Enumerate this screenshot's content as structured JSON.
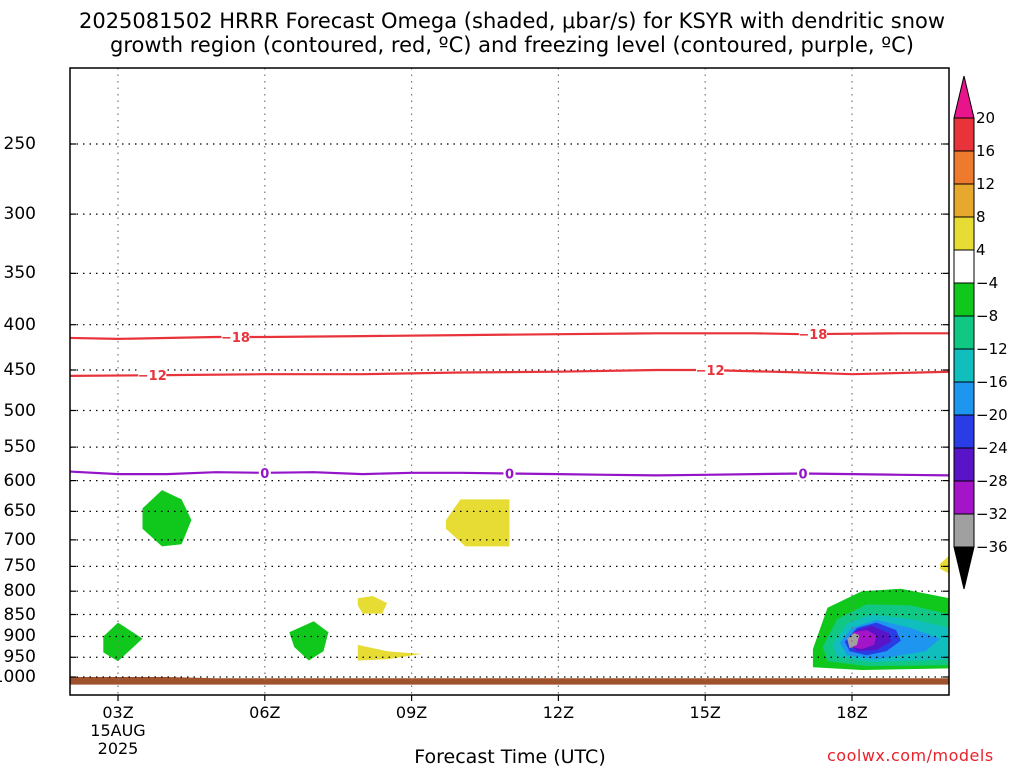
{
  "header": {
    "title_line1": "2025081502 HRRR Forecast Omega (shaded, μbar/s) for KSYR with dendritic snow",
    "title_line2": "growth region (contoured, red, ºC) and freezing level (contoured, purple, ºC)"
  },
  "footer": {
    "xlabel": "Forecast Time (UTC)",
    "credit": "coolwx.com/models"
  },
  "chart_data": {
    "type": "heatmap",
    "x_axis": {
      "label": "Forecast Time (UTC)",
      "ticks": [
        "03Z",
        "06Z",
        "09Z",
        "12Z",
        "15Z",
        "18Z"
      ],
      "tick_hours": [
        3,
        6,
        9,
        12,
        15,
        18
      ],
      "range_hours": [
        2,
        20
      ],
      "date_line1": "15AUG",
      "date_line2": "2025",
      "grid": true
    },
    "y_axis": {
      "label": "",
      "unit": "hPa",
      "ticks": [
        250,
        300,
        350,
        400,
        450,
        500,
        550,
        600,
        650,
        700,
        750,
        800,
        850,
        900,
        950,
        1000
      ],
      "range": [
        200,
        1020
      ],
      "inverted": true,
      "grid": true
    },
    "colorbar": {
      "labels": [
        "20",
        "16",
        "12",
        "8",
        "4",
        "−4",
        "−8",
        "−12",
        "−16",
        "−20",
        "−24",
        "−28",
        "−32",
        "−36"
      ],
      "levels": [
        20,
        16,
        12,
        8,
        4,
        -4,
        -8,
        -12,
        -16,
        -20,
        -24,
        -28,
        -32,
        -36
      ],
      "bins": [
        {
          "range": [
            16,
            20
          ],
          "color": "#e8333a"
        },
        {
          "range": [
            12,
            16
          ],
          "color": "#ed7a2d"
        },
        {
          "range": [
            8,
            12
          ],
          "color": "#e6a92e"
        },
        {
          "range": [
            4,
            8
          ],
          "color": "#e6dc33"
        },
        {
          "range": [
            -4,
            4
          ],
          "color": "#ffffff"
        },
        {
          "range": [
            -8,
            -4
          ],
          "color": "#10c81c"
        },
        {
          "range": [
            -12,
            -8
          ],
          "color": "#10c884"
        },
        {
          "range": [
            -16,
            -12
          ],
          "color": "#10bebe"
        },
        {
          "range": [
            -20,
            -16
          ],
          "color": "#1e96f0"
        },
        {
          "range": [
            -24,
            -20
          ],
          "color": "#2a3ce6"
        },
        {
          "range": [
            -28,
            -24
          ],
          "color": "#5a14c8"
        },
        {
          "range": [
            -32,
            -28
          ],
          "color": "#a414c8"
        },
        {
          "range": [
            -36,
            -32
          ],
          "color": "#a0a0a0"
        }
      ],
      "top_triangle_color": "#e8148c",
      "bottom_triangle_color": "#000000"
    },
    "contours": [
      {
        "name": "dgz-18",
        "label": "−18",
        "color": "#e8333a",
        "points": [
          [
            2,
            414
          ],
          [
            3,
            415
          ],
          [
            5,
            413
          ],
          [
            6,
            413
          ],
          [
            8,
            412
          ],
          [
            10,
            411
          ],
          [
            12,
            410
          ],
          [
            14,
            409
          ],
          [
            16,
            409
          ],
          [
            17,
            410
          ],
          [
            19,
            409
          ],
          [
            20,
            409
          ]
        ],
        "label_hours": [
          5.4,
          17.2
        ]
      },
      {
        "name": "dgz-12",
        "label": "−12",
        "color": "#e8333a",
        "points": [
          [
            2,
            457
          ],
          [
            4,
            456
          ],
          [
            6,
            455
          ],
          [
            8,
            455
          ],
          [
            10,
            453
          ],
          [
            12,
            452
          ],
          [
            14,
            450
          ],
          [
            15,
            450
          ],
          [
            17,
            453
          ],
          [
            18,
            455
          ],
          [
            20,
            452
          ]
        ],
        "label_hours": [
          3.7,
          15.1
        ]
      },
      {
        "name": "freezing-level",
        "label": "0",
        "color": "#9414c8",
        "points": [
          [
            2,
            586
          ],
          [
            3,
            590
          ],
          [
            4,
            590
          ],
          [
            5,
            587
          ],
          [
            6,
            588
          ],
          [
            7,
            587
          ],
          [
            8,
            590
          ],
          [
            9,
            588
          ],
          [
            10,
            588
          ],
          [
            11,
            589
          ],
          [
            12,
            590
          ],
          [
            13,
            591
          ],
          [
            14,
            592
          ],
          [
            15,
            591
          ],
          [
            16,
            590
          ],
          [
            17,
            589
          ],
          [
            18,
            590
          ],
          [
            19,
            591
          ],
          [
            20,
            592
          ]
        ],
        "label_hours": [
          6,
          11,
          17
        ]
      }
    ],
    "shaded_regions": [
      {
        "name": "omega-green-03z-mid",
        "value_bin": [
          -8,
          -4
        ],
        "color": "#10c81c",
        "points": [
          [
            3.5,
            645
          ],
          [
            3.9,
            615
          ],
          [
            4.3,
            630
          ],
          [
            4.5,
            665
          ],
          [
            4.3,
            708
          ],
          [
            3.9,
            712
          ],
          [
            3.5,
            680
          ]
        ]
      },
      {
        "name": "omega-yellow-10z",
        "value_bin": [
          4,
          8
        ],
        "color": "#e6dc33",
        "points": [
          [
            9.7,
            665
          ],
          [
            10,
            630
          ],
          [
            11,
            630
          ],
          [
            11,
            712
          ],
          [
            10.1,
            712
          ],
          [
            9.7,
            680
          ]
        ]
      },
      {
        "name": "omega-green-03z-low",
        "value_bin": [
          -8,
          -4
        ],
        "color": "#10c81c",
        "points": [
          [
            2.7,
            900
          ],
          [
            3,
            868
          ],
          [
            3.5,
            905
          ],
          [
            3,
            960
          ],
          [
            2.7,
            938
          ]
        ]
      },
      {
        "name": "omega-green-07z",
        "value_bin": [
          -8,
          -4
        ],
        "color": "#10c81c",
        "points": [
          [
            6.5,
            890
          ],
          [
            7,
            865
          ],
          [
            7.3,
            890
          ],
          [
            7.2,
            935
          ],
          [
            6.9,
            958
          ],
          [
            6.6,
            925
          ]
        ]
      },
      {
        "name": "omega-yellow-08z-upper",
        "value_bin": [
          4,
          8
        ],
        "color": "#e6dc33",
        "points": [
          [
            7.9,
            815
          ],
          [
            8.2,
            810
          ],
          [
            8.5,
            825
          ],
          [
            8.4,
            848
          ],
          [
            8,
            848
          ],
          [
            7.9,
            830
          ]
        ]
      },
      {
        "name": "omega-yellow-08z-lower",
        "value_bin": [
          4,
          8
        ],
        "color": "#e6dc33",
        "points": [
          [
            7.9,
            920
          ],
          [
            8.5,
            935
          ],
          [
            9,
            940
          ],
          [
            9.2,
            942
          ],
          [
            8.5,
            955
          ],
          [
            7.9,
            958
          ]
        ]
      },
      {
        "name": "omega-yellow-20z",
        "value_bin": [
          4,
          8
        ],
        "color": "#e6dc33",
        "points": [
          [
            19.8,
            745
          ],
          [
            20,
            728
          ],
          [
            20,
            765
          ],
          [
            19.8,
            755
          ]
        ]
      },
      {
        "name": "omega-green-18z",
        "value_bin": [
          -8,
          -4
        ],
        "color": "#10c81c",
        "points": [
          [
            17.2,
            930
          ],
          [
            17.5,
            835
          ],
          [
            18.2,
            800
          ],
          [
            19,
            795
          ],
          [
            20,
            815
          ],
          [
            20,
            978
          ],
          [
            18.2,
            982
          ],
          [
            17.2,
            975
          ]
        ]
      },
      {
        "name": "omega-teal-18z",
        "value_bin": [
          -12,
          -8
        ],
        "color": "#10c884",
        "points": [
          [
            17.4,
            925
          ],
          [
            17.7,
            860
          ],
          [
            18.3,
            828
          ],
          [
            19.2,
            830
          ],
          [
            20,
            850
          ],
          [
            20,
            970
          ],
          [
            18.3,
            972
          ],
          [
            17.5,
            960
          ]
        ]
      },
      {
        "name": "omega-cyan-18z",
        "value_bin": [
          -16,
          -12
        ],
        "color": "#10bebe",
        "points": [
          [
            17.6,
            920
          ],
          [
            17.9,
            870
          ],
          [
            18.4,
            850
          ],
          [
            19.2,
            860
          ],
          [
            20,
            880
          ],
          [
            20,
            955
          ],
          [
            18.4,
            962
          ],
          [
            17.7,
            950
          ]
        ]
      },
      {
        "name": "omega-blue-18z",
        "value_bin": [
          -20,
          -16
        ],
        "color": "#1e96f0",
        "points": [
          [
            17.75,
            915
          ],
          [
            18,
            880
          ],
          [
            18.5,
            862
          ],
          [
            19.2,
            880
          ],
          [
            19.8,
            905
          ],
          [
            19.5,
            935
          ],
          [
            18.5,
            955
          ],
          [
            17.9,
            945
          ]
        ]
      },
      {
        "name": "omega-darkblue-18z",
        "value_bin": [
          -24,
          -20
        ],
        "color": "#2a3ce6",
        "points": [
          [
            17.85,
            912
          ],
          [
            18.1,
            880
          ],
          [
            18.5,
            868
          ],
          [
            18.9,
            885
          ],
          [
            19,
            910
          ],
          [
            18.7,
            935
          ],
          [
            18.3,
            945
          ],
          [
            17.95,
            935
          ]
        ]
      },
      {
        "name": "omega-indigo-18z",
        "value_bin": [
          -28,
          -24
        ],
        "color": "#5a14c8",
        "points": [
          [
            17.9,
            910
          ],
          [
            18.1,
            885
          ],
          [
            18.4,
            875
          ],
          [
            18.75,
            892
          ],
          [
            18.8,
            912
          ],
          [
            18.5,
            932
          ],
          [
            18.1,
            935
          ]
        ]
      },
      {
        "name": "omega-magenta-18z",
        "value_bin": [
          -32,
          -28
        ],
        "color": "#a414c8",
        "points": [
          [
            17.9,
            908
          ],
          [
            18.05,
            890
          ],
          [
            18.3,
            885
          ],
          [
            18.5,
            898
          ],
          [
            18.45,
            920
          ],
          [
            18.2,
            930
          ],
          [
            18,
            925
          ]
        ]
      },
      {
        "name": "omega-gray-18z",
        "value_bin": [
          -36,
          -32
        ],
        "color": "#a0a0a0",
        "points": [
          [
            17.9,
            905
          ],
          [
            18.05,
            892
          ],
          [
            18.15,
            897
          ],
          [
            18.1,
            920
          ],
          [
            17.95,
            928
          ]
        ]
      }
    ],
    "terrain": {
      "name": "ground",
      "color": "#a0522d",
      "points": [
        [
          2,
          1000
        ],
        [
          3,
          1000
        ],
        [
          4,
          1000
        ],
        [
          5,
          1003
        ],
        [
          10,
          1003
        ],
        [
          15,
          1003
        ],
        [
          20,
          1003
        ],
        [
          20,
          1020
        ],
        [
          2,
          1020
        ]
      ]
    }
  }
}
